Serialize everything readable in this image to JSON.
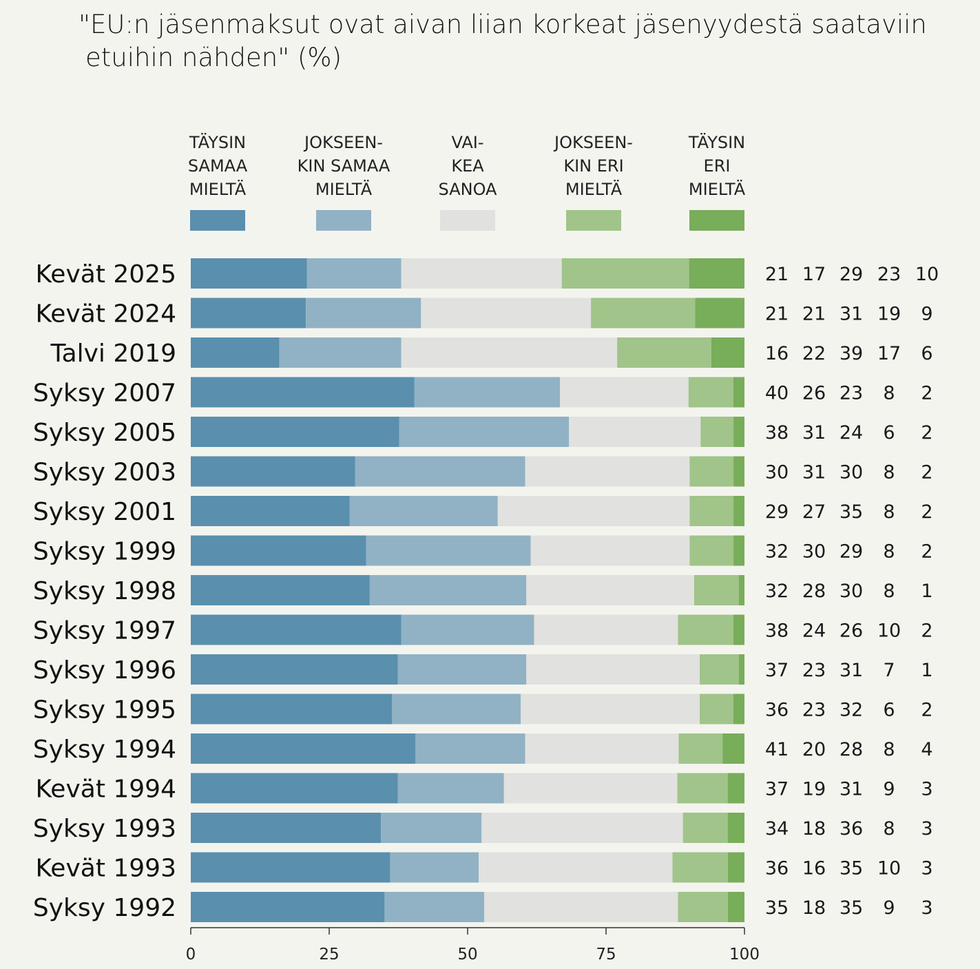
{
  "chart_data": {
    "type": "bar",
    "orientation": "horizontal",
    "stacked": true,
    "title_line1": "\"EU:n jäsenmaksut ovat aivan liian korkeat jäsenyydestä saataviin",
    "title_line2": "etuihin nähden\" (%)",
    "categories": [
      "Kevät 2025",
      "Kevät 2024",
      "Talvi 2019",
      "Syksy 2007",
      "Syksy 2005",
      "Syksy 2003",
      "Syksy 2001",
      "Syksy 1999",
      "Syksy 1998",
      "Syksy 1997",
      "Syksy 1996",
      "Syksy 1995",
      "Syksy 1994",
      "Kevät 1994",
      "Syksy 1993",
      "Kevät 1993",
      "Syksy 1992"
    ],
    "series": [
      {
        "legend_lines": [
          "TÄYSIN",
          "SAMAA",
          "MIELTÄ"
        ],
        "color": "#5a8fae",
        "values": [
          21,
          21,
          16,
          40,
          38,
          30,
          29,
          32,
          32,
          38,
          37,
          36,
          41,
          37,
          34,
          36,
          35
        ]
      },
      {
        "legend_lines": [
          "JOKSEEN-",
          "KIN SAMAA",
          "MIELTÄ"
        ],
        "color": "#90b2c4",
        "values": [
          17,
          21,
          22,
          26,
          31,
          31,
          27,
          30,
          28,
          24,
          23,
          23,
          20,
          19,
          18,
          16,
          18
        ]
      },
      {
        "legend_lines": [
          "VAI-",
          "KEA",
          "SANOA"
        ],
        "color": "#e1e1df",
        "values": [
          29,
          31,
          39,
          23,
          24,
          30,
          35,
          29,
          30,
          26,
          31,
          32,
          28,
          31,
          36,
          35,
          35
        ]
      },
      {
        "legend_lines": [
          "JOKSEEN-",
          "KIN ERI",
          "MIELTÄ"
        ],
        "color": "#a0c489",
        "values": [
          23,
          19,
          17,
          8,
          6,
          8,
          8,
          8,
          8,
          10,
          7,
          6,
          8,
          9,
          8,
          10,
          9
        ]
      },
      {
        "legend_lines": [
          "TÄYSIN",
          "ERI",
          "MIELTÄ"
        ],
        "color": "#78ad5a",
        "values": [
          10,
          9,
          6,
          2,
          2,
          2,
          2,
          2,
          1,
          2,
          1,
          2,
          4,
          3,
          3,
          3,
          3
        ]
      }
    ],
    "xlim": [
      0,
      100
    ],
    "xticks": [
      "0",
      "25",
      "50",
      "75",
      "100"
    ],
    "grid": false,
    "legend_position": "top"
  }
}
